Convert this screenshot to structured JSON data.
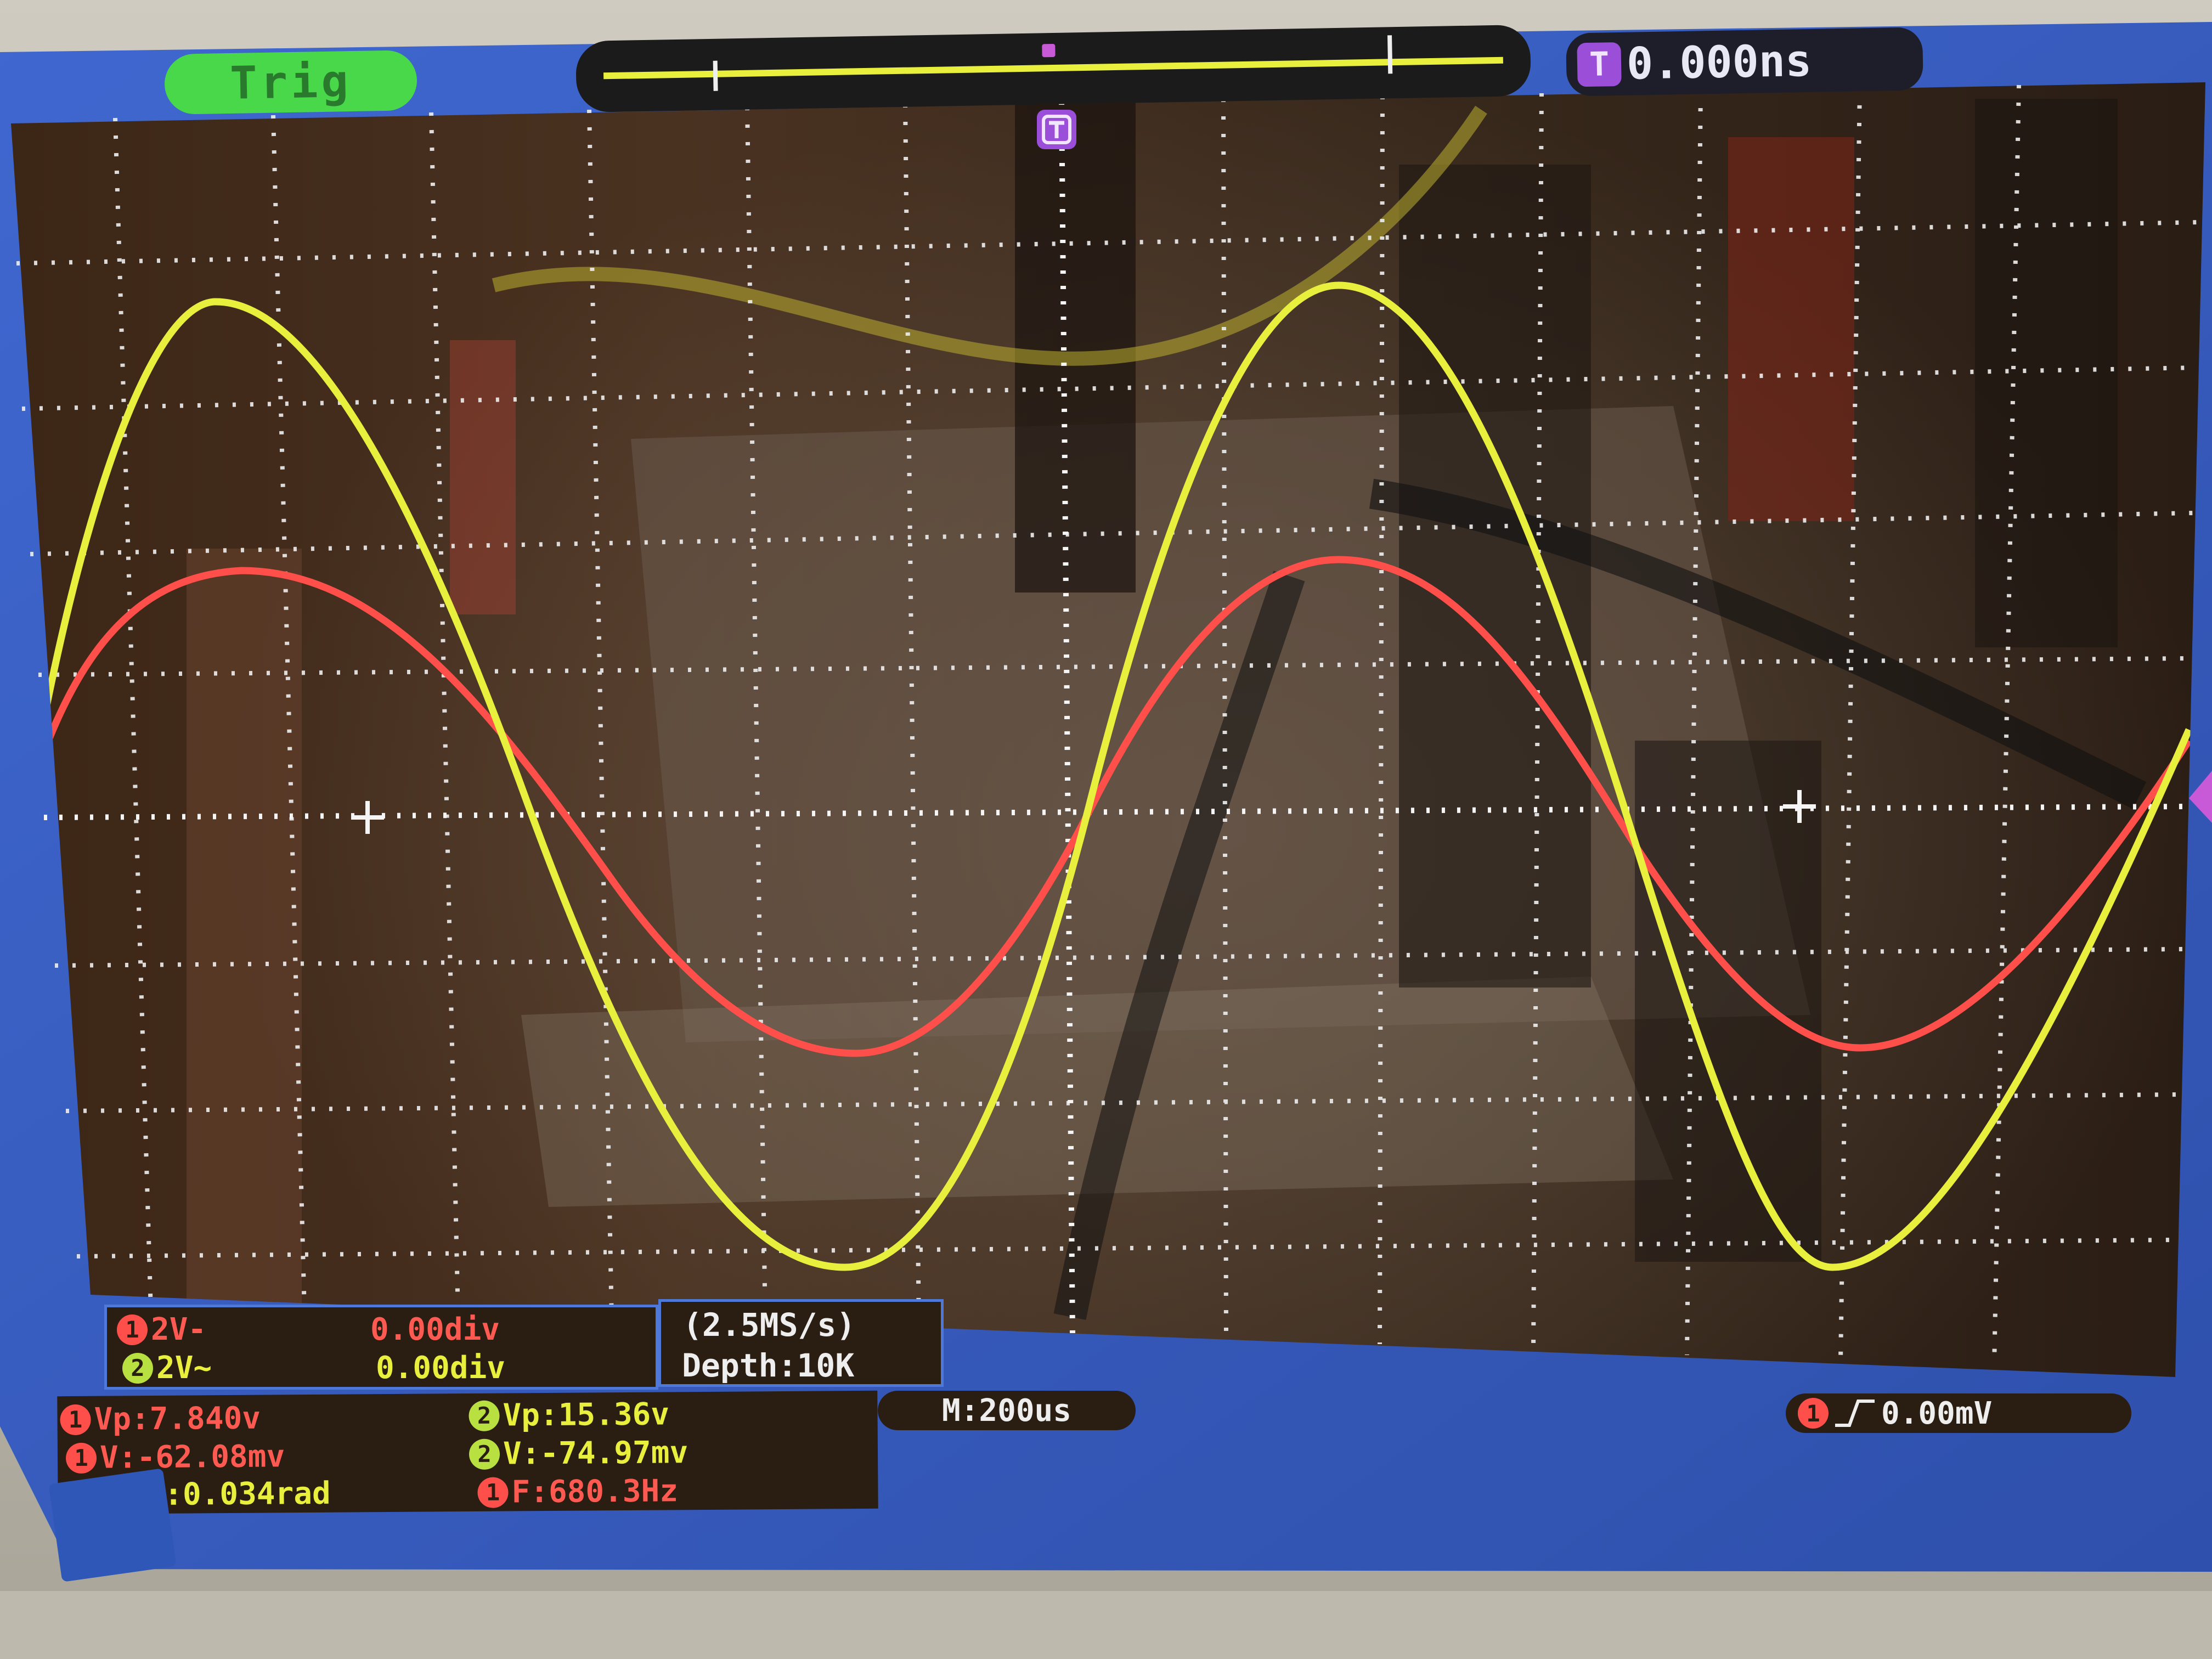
{
  "top_bar": {
    "trig_label": "Trig",
    "trigger_icon": "T",
    "time_offset": "0.000ns"
  },
  "channels_box": {
    "ch1_badge": "1",
    "ch1_scale": "2V-",
    "ch1_offset": "0.00div",
    "ch2_badge": "2",
    "ch2_scale": "2V~",
    "ch2_offset": "0.00div"
  },
  "acquisition": {
    "sample_rate": "(2.5MS/s)",
    "depth": "Depth:10K"
  },
  "measurements": {
    "ch1_vp": "Vp:7.840v",
    "ch1_v": "V:-62.08mv",
    "phase": "P:0.034rad",
    "ch2_vp": "Vp:15.36v",
    "ch2_v": "V:-74.97mv",
    "frequency": "F:680.3Hz"
  },
  "timebase": "M:200us",
  "trigger_readout": {
    "source_badge": "1",
    "edge_icon": "rising-edge-icon",
    "level": "0.00mV"
  },
  "colors": {
    "screen_blue": "#3a5fc4",
    "channel1_red": "#ff4f4a",
    "channel2_yellow": "#e8ef3c",
    "trig_green": "#49d84a",
    "trigger_purple": "#9b4fd8"
  }
}
